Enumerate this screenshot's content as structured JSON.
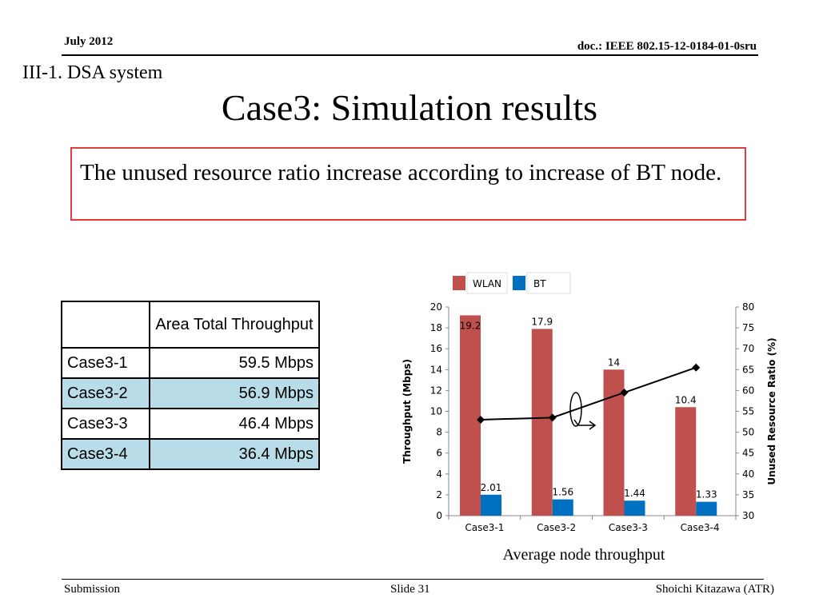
{
  "header": {
    "date": "July 2012",
    "doc": "doc.: IEEE 802.15-12-0184-01-0sru"
  },
  "section": "III-1. DSA system",
  "title": "Case3: Simulation results",
  "callout": "The unused resource ratio increase according to increase of BT node.",
  "table": {
    "header": "Area Total Throughput",
    "rows": [
      {
        "case": "Case3-1",
        "value": "59.5 Mbps"
      },
      {
        "case": "Case3-2",
        "value": "56.9 Mbps"
      },
      {
        "case": "Case3-3",
        "value": "46.4 Mbps"
      },
      {
        "case": "Case3-4",
        "value": "36.4 Mbps"
      }
    ]
  },
  "chart_data": {
    "type": "bar",
    "categories": [
      "Case3-1",
      "Case3-2",
      "Case3-3",
      "Case3-4"
    ],
    "series": [
      {
        "name": "WLAN",
        "values": [
          19.2,
          17.9,
          14,
          10.4
        ],
        "color": "#c0504d",
        "axis": "left"
      },
      {
        "name": "BT",
        "values": [
          2.01,
          1.56,
          1.44,
          1.33
        ],
        "color": "#0070c0",
        "axis": "left"
      },
      {
        "type": "line",
        "values": [
          53,
          53.5,
          59.5,
          65.5
        ],
        "color": "#000000",
        "axis": "right"
      }
    ],
    "data_labels": [
      "19.2",
      "17.9",
      "14",
      "10.4",
      "2.01",
      "1.56",
      "1.44",
      "1.33"
    ],
    "ylabel": "Throughput (Mbps)",
    "y2label": "Unused Resource Ratio (%)",
    "ylim": [
      0,
      20
    ],
    "y2lim": [
      30,
      80
    ],
    "yticks": [
      0,
      2,
      4,
      6,
      8,
      10,
      12,
      14,
      16,
      18,
      20
    ],
    "y2ticks": [
      30,
      35,
      40,
      45,
      50,
      55,
      60,
      65,
      70,
      75,
      80
    ],
    "legend": "top",
    "grid": false,
    "caption": "Average node throughput"
  },
  "footer": {
    "left": "Submission",
    "center": "Slide 31",
    "right": "Shoichi Kitazawa (ATR)"
  }
}
